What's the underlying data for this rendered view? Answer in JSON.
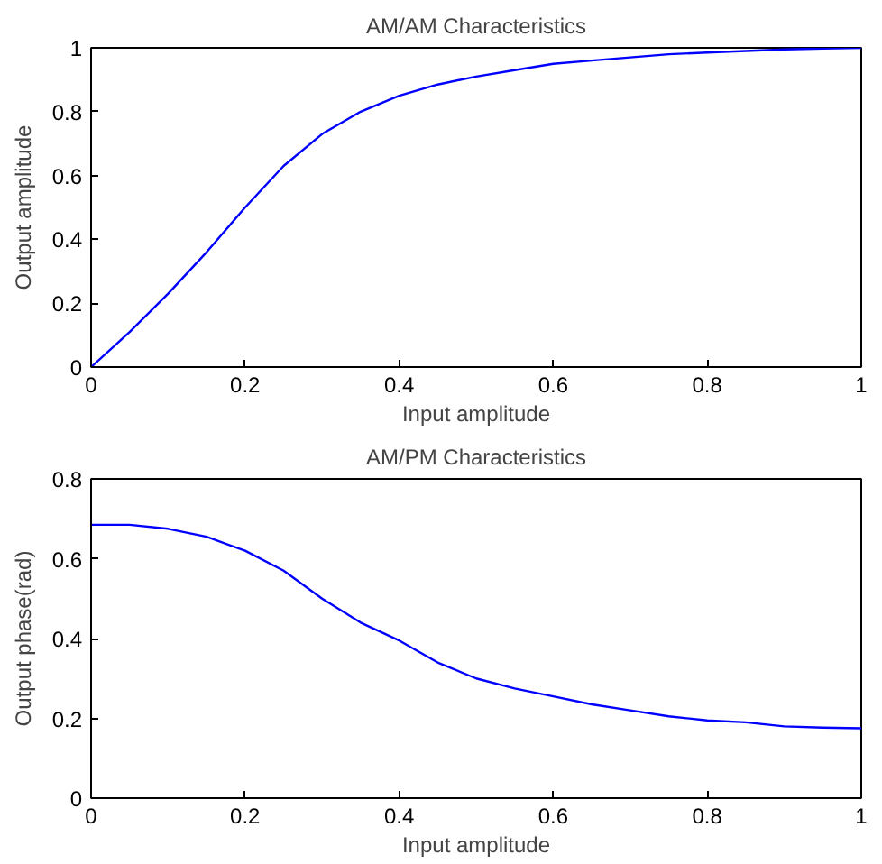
{
  "chart_data": [
    {
      "type": "line",
      "title": "AM/AM Characteristics",
      "xlabel": "Input amplitude",
      "ylabel": "Output amplitude",
      "x": [
        0,
        0.05,
        0.1,
        0.15,
        0.2,
        0.25,
        0.3,
        0.35,
        0.4,
        0.45,
        0.5,
        0.55,
        0.6,
        0.65,
        0.7,
        0.75,
        0.8,
        0.85,
        0.9,
        0.95,
        1.0
      ],
      "series": [
        {
          "color": "#0000ff",
          "values": [
            0,
            0.11,
            0.23,
            0.36,
            0.5,
            0.63,
            0.73,
            0.8,
            0.85,
            0.885,
            0.91,
            0.93,
            0.95,
            0.96,
            0.97,
            0.98,
            0.985,
            0.99,
            0.995,
            0.998,
            1.0
          ]
        }
      ],
      "xlim": [
        0,
        1
      ],
      "ylim": [
        0,
        1
      ],
      "xticks": [
        0,
        0.2,
        0.4,
        0.6,
        0.8,
        1
      ],
      "yticks": [
        0,
        0.2,
        0.4,
        0.6,
        0.8,
        1
      ],
      "grid": false
    },
    {
      "type": "line",
      "title": "AM/PM Characteristics",
      "xlabel": "Input amplitude",
      "ylabel": "Output phase(rad)",
      "x": [
        0,
        0.05,
        0.1,
        0.15,
        0.2,
        0.25,
        0.3,
        0.35,
        0.4,
        0.45,
        0.5,
        0.55,
        0.6,
        0.65,
        0.7,
        0.75,
        0.8,
        0.85,
        0.9,
        0.95,
        1.0
      ],
      "series": [
        {
          "color": "#0000ff",
          "values": [
            0.685,
            0.685,
            0.675,
            0.655,
            0.62,
            0.57,
            0.5,
            0.44,
            0.395,
            0.34,
            0.3,
            0.275,
            0.255,
            0.235,
            0.22,
            0.205,
            0.195,
            0.19,
            0.18,
            0.177,
            0.175
          ]
        }
      ],
      "xlim": [
        0,
        1
      ],
      "ylim": [
        0,
        0.8
      ],
      "xticks": [
        0,
        0.2,
        0.4,
        0.6,
        0.8,
        1
      ],
      "yticks": [
        0,
        0.2,
        0.4,
        0.6,
        0.8
      ],
      "grid": false
    }
  ]
}
